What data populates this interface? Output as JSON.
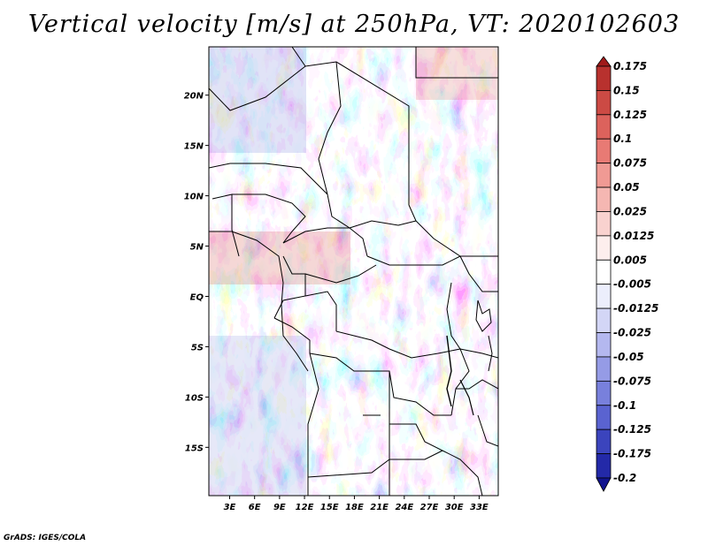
{
  "title": "Vertical velocity [m/s] at 250hPa, VT: 2020102603",
  "credit": "GrADS: IGES/COLA",
  "map": {
    "lat_labels": [
      "20N",
      "15N",
      "10N",
      "5N",
      "EQ",
      "5S",
      "10S",
      "15S"
    ],
    "lon_labels": [
      "3E",
      "6E",
      "9E",
      "12E",
      "15E",
      "18E",
      "21E",
      "24E",
      "27E",
      "30E",
      "33E"
    ],
    "lat_values": [
      20,
      15,
      10,
      5,
      0,
      -5,
      -10,
      -15
    ],
    "lon_values": [
      3,
      6,
      9,
      12,
      15,
      18,
      21,
      24,
      27,
      30,
      33
    ],
    "lon_range": [
      0.5,
      35.3
    ],
    "lat_range": [
      -19.8,
      24.8
    ]
  },
  "colorbar": {
    "levels": [
      "0.175",
      "0.15",
      "0.125",
      "0.1",
      "0.075",
      "0.05",
      "0.025",
      "0.0125",
      "0.005",
      "-0.005",
      "-0.0125",
      "-0.025",
      "-0.05",
      "-0.075",
      "-0.1",
      "-0.125",
      "-0.175",
      "-0.2"
    ],
    "colors": [
      "#a01a1a",
      "#b8312e",
      "#cc4a44",
      "#dc625c",
      "#e87a74",
      "#f09a94",
      "#f5b7b2",
      "#f9d2cf",
      "#fdeeed",
      "#ffffff",
      "#eceefc",
      "#d3d6f6",
      "#b4b8ef",
      "#959be6",
      "#7880dc",
      "#5a63d0",
      "#3b44bd",
      "#2329a8",
      "#12148f"
    ]
  }
}
